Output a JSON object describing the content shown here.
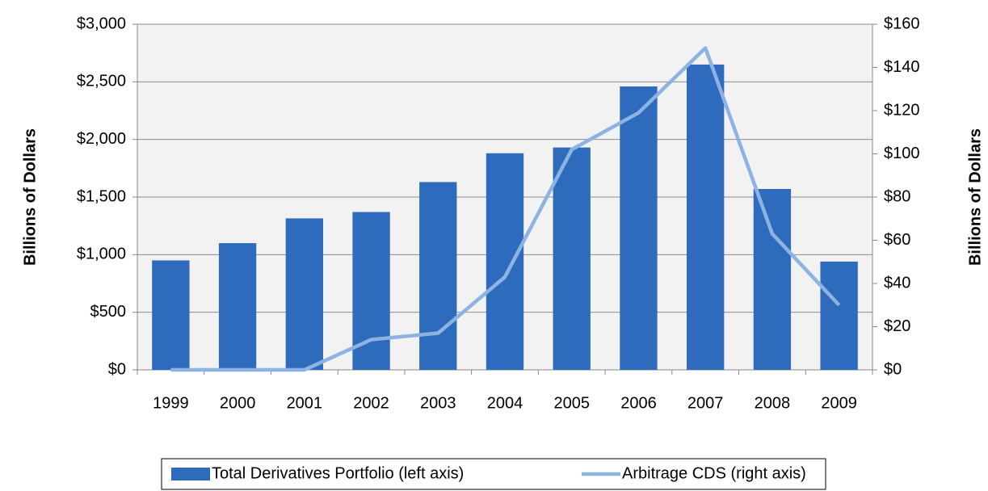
{
  "chart_data": {
    "type": "bar_line",
    "categories": [
      "1999",
      "2000",
      "2001",
      "2002",
      "2003",
      "2004",
      "2005",
      "2006",
      "2007",
      "2008",
      "2009"
    ],
    "series": [
      {
        "name": "Total Derivatives Portfolio (left axis)",
        "color": "#2e6bbd",
        "type": "bar",
        "values": [
          950,
          1100,
          1315,
          1370,
          1630,
          1880,
          1930,
          2460,
          2650,
          1570,
          940
        ]
      },
      {
        "name": "Arbitrage CDS (right axis)",
        "color": "#8db3e2",
        "type": "line",
        "axis": "y2",
        "values": [
          0,
          0,
          0,
          14,
          17,
          43,
          102,
          119,
          149,
          63,
          30
        ]
      }
    ],
    "ylabel": "Billions of Dollars",
    "y2label": "Billions of Dollars",
    "ylim": [
      0,
      3000
    ],
    "yticks": [
      {
        "value": 0,
        "label": "$0"
      },
      {
        "value": 500,
        "label": "$500"
      },
      {
        "value": 1000,
        "label": "$1,000"
      },
      {
        "value": 1500,
        "label": "$1,500"
      },
      {
        "value": 2000,
        "label": "$2,000"
      },
      {
        "value": 2500,
        "label": "$2,500"
      },
      {
        "value": 3000,
        "label": "$3,000"
      }
    ],
    "y2lim": [
      0,
      160
    ],
    "y2ticks": [
      {
        "value": 0,
        "label": "$0"
      },
      {
        "value": 20,
        "label": "$20"
      },
      {
        "value": 40,
        "label": "$40"
      },
      {
        "value": 60,
        "label": "$60"
      },
      {
        "value": 80,
        "label": "$80"
      },
      {
        "value": 100,
        "label": "$100"
      },
      {
        "value": 120,
        "label": "$120"
      },
      {
        "value": 140,
        "label": "$140"
      },
      {
        "value": 160,
        "label": "$160"
      }
    ],
    "grid": true,
    "legend": "bottom"
  }
}
